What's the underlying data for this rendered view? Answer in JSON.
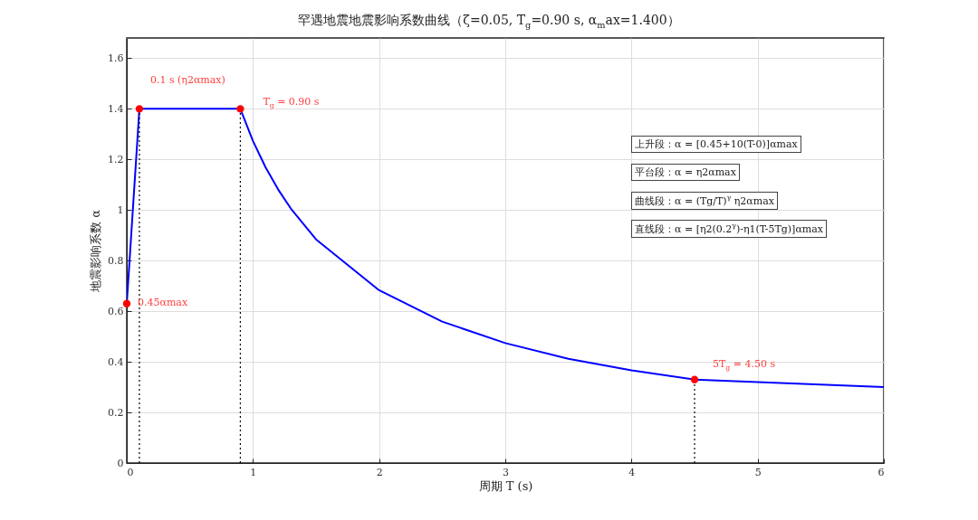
{
  "chart_data": {
    "type": "line",
    "title": "罕遇地震地震影响系数曲线（ζ=0.05, T$_{g}$=0.90 s, α$_{m}$ax=1.400）",
    "xlabel": "周期 T (s)",
    "ylabel": "地震影响系数 α",
    "xlim": [
      0,
      6
    ],
    "ylim": [
      0,
      1.68
    ],
    "xticks": [
      0,
      1,
      2,
      3,
      4,
      5,
      6
    ],
    "yticks": [
      0,
      0.2,
      0.4,
      0.6,
      0.8,
      1,
      1.2,
      1.4,
      1.6
    ],
    "grid": true,
    "series": [
      {
        "color": "#0000ff",
        "x": [
          0,
          0.1,
          0.9,
          1.0,
          1.1,
          1.2,
          1.3,
          1.5,
          2,
          2.5,
          3,
          3.5,
          4,
          4.5,
          6
        ],
        "values": [
          0.63,
          1.4,
          1.4,
          1.273,
          1.169,
          1.081,
          1.006,
          0.884,
          0.683,
          0.559,
          0.474,
          0.412,
          0.366,
          0.33,
          0.3
        ]
      },
      {
        "color": "#000000",
        "line_style": "dotted",
        "x": [
          0.1,
          0.1
        ],
        "values": [
          0,
          1.4
        ]
      },
      {
        "color": "#000000",
        "line_style": "dotted",
        "x": [
          0.9,
          0.9
        ],
        "values": [
          0,
          1.4
        ]
      },
      {
        "color": "#000000",
        "line_style": "dotted",
        "x": [
          4.5,
          4.5
        ],
        "values": [
          0,
          0.33
        ]
      },
      {
        "type": "scatter",
        "color": "#ff0000",
        "marker": "circle",
        "x": [
          0,
          0.1,
          0.9,
          4.5
        ],
        "values": [
          0.63,
          1.4,
          1.4,
          0.33
        ]
      }
    ],
    "annotations": [
      {
        "text": "0.1 s (η2αmax)",
        "x": 0.1,
        "y": 1.4
      },
      {
        "text": "T$_{g}$ = 0.90 s",
        "x": 0.9,
        "y": 1.4
      },
      {
        "text": "0.45αmax",
        "x": 0,
        "y": 0.63
      },
      {
        "text": "5T$_{g}$ = 4.50 s",
        "x": 4.5,
        "y": 0.33
      },
      "上升段：α = [0.45+10(T-0)]αmax",
      "平台段：α = η2αmax",
      "曲线段：α = (Tg/T)$^{γ}$ η2αmax",
      "直线段：α = [η2(0.2$^{γ}$)-η1(T-5Tg)]αmax"
    ]
  }
}
